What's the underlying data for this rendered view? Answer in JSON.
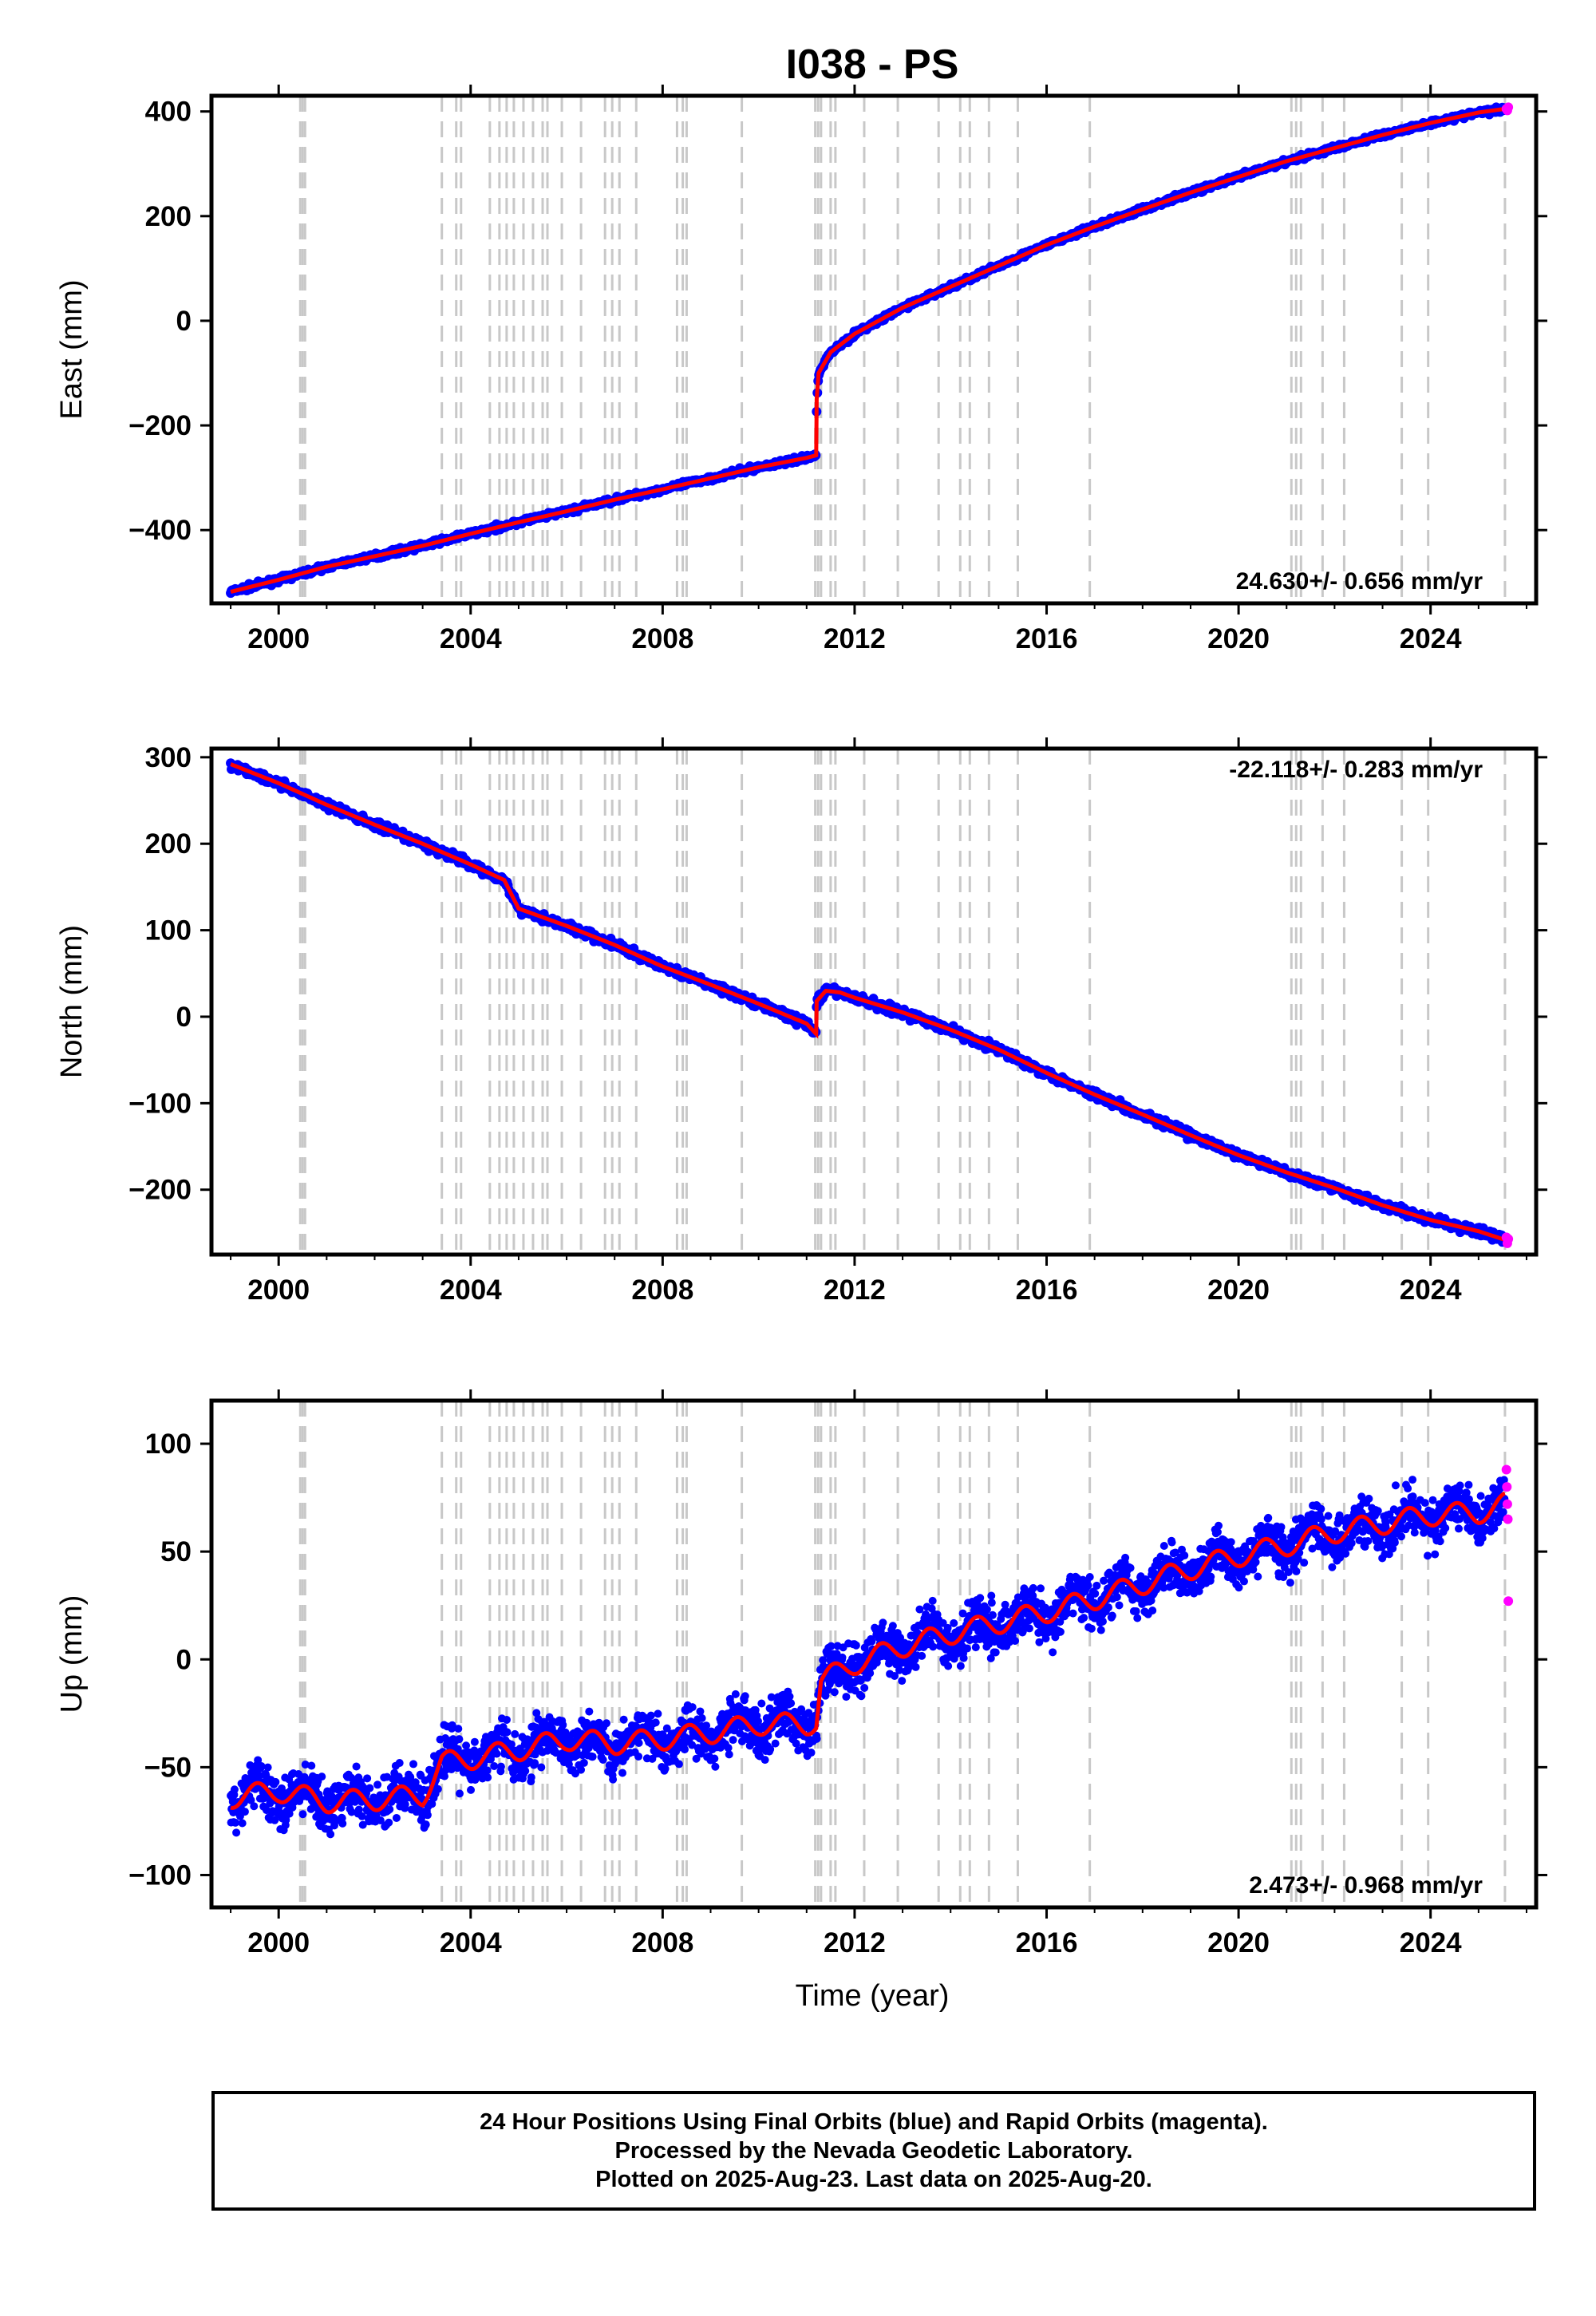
{
  "title": "I038 - PS",
  "xlabel": "Time (year)",
  "colors": {
    "final_orbit_points": "#0000ff",
    "rapid_orbit_points": "#ff00ff",
    "model_line": "#ff0000",
    "event_lines": "#c8c8c8",
    "frame": "#000000"
  },
  "chart_data": [
    {
      "type": "scatter",
      "component": "East",
      "ylabel": "East (mm)",
      "xlim": [
        1998.6,
        2026.2
      ],
      "ylim": [
        -540,
        430
      ],
      "x_ticks": [
        "2000",
        "2004",
        "2008",
        "2012",
        "2016",
        "2020",
        "2024"
      ],
      "y_ticks": [
        "400",
        "200",
        "0",
        "−200",
        "−400"
      ],
      "rate_label": "24.630+/- 0.656 mm/yr",
      "rate_label_position": "bottom-right",
      "series": [
        {
          "name": "Final Orbits",
          "color": "#0000ff",
          "x": [
            1999.0,
            2000.0,
            2001.0,
            2002.0,
            2003.0,
            2004.0,
            2005.0,
            2006.0,
            2007.0,
            2008.0,
            2009.0,
            2010.0,
            2011.0,
            2011.2,
            2011.21,
            2011.25,
            2011.5,
            2012.0,
            2013.0,
            2014.0,
            2015.0,
            2016.0,
            2017.0,
            2018.0,
            2019.0,
            2020.0,
            2021.0,
            2022.0,
            2023.0,
            2024.0,
            2025.0,
            2025.55
          ],
          "y": [
            -518,
            -495,
            -470,
            -450,
            -430,
            -407,
            -385,
            -364,
            -342,
            -322,
            -301,
            -280,
            -262,
            -257,
            -150,
            -100,
            -60,
            -25,
            25,
            65,
            105,
            145,
            180,
            213,
            245,
            275,
            305,
            330,
            355,
            378,
            398,
            405
          ]
        },
        {
          "name": "Rapid Orbits",
          "color": "#ff00ff",
          "x": [
            2025.58,
            2025.6,
            2025.62
          ],
          "y": [
            405,
            402,
            408
          ]
        }
      ]
    },
    {
      "type": "scatter",
      "component": "North",
      "ylabel": "North (mm)",
      "xlim": [
        1998.6,
        2026.2
      ],
      "ylim": [
        -275,
        310
      ],
      "x_ticks": [
        "2000",
        "2004",
        "2008",
        "2012",
        "2016",
        "2020",
        "2024"
      ],
      "y_ticks": [
        "300",
        "200",
        "100",
        "0",
        "−100",
        "−200"
      ],
      "rate_label": "-22.118+/- 0.283 mm/yr",
      "rate_label_position": "top-right",
      "series": [
        {
          "name": "Final Orbits",
          "color": "#0000ff",
          "x": [
            1999.0,
            2000.0,
            2001.0,
            2002.0,
            2003.0,
            2004.0,
            2004.7,
            2005.0,
            2006.0,
            2007.0,
            2008.0,
            2009.0,
            2010.0,
            2011.0,
            2011.2,
            2011.21,
            2011.4,
            2011.7,
            2012.0,
            2013.0,
            2014.0,
            2015.0,
            2016.0,
            2017.0,
            2018.0,
            2019.0,
            2020.0,
            2021.0,
            2022.0,
            2023.0,
            2024.0,
            2025.0,
            2025.55
          ],
          "y": [
            292,
            270,
            245,
            222,
            200,
            176,
            158,
            125,
            105,
            83,
            58,
            37,
            15,
            -8,
            -20,
            18,
            30,
            28,
            22,
            5,
            -15,
            -38,
            -65,
            -90,
            -113,
            -137,
            -160,
            -180,
            -198,
            -218,
            -235,
            -248,
            -258
          ]
        },
        {
          "name": "Rapid Orbits",
          "color": "#ff00ff",
          "x": [
            2025.58,
            2025.6,
            2025.62
          ],
          "y": [
            -255,
            -262,
            -257
          ]
        }
      ]
    },
    {
      "type": "scatter",
      "component": "Up",
      "ylabel": "Up (mm)",
      "xlim": [
        1998.6,
        2026.2
      ],
      "ylim": [
        -115,
        120
      ],
      "x_ticks": [
        "2000",
        "2004",
        "2008",
        "2012",
        "2016",
        "2020",
        "2024"
      ],
      "y_ticks": [
        "100",
        "50",
        "0",
        "−50",
        "−100"
      ],
      "rate_label": "2.473+/- 0.968 mm/yr",
      "rate_label_position": "bottom-right",
      "series": [
        {
          "name": "Final Orbits",
          "color": "#0000ff",
          "x": [
            1999.0,
            2000.0,
            2001.0,
            2002.0,
            2003.0,
            2003.4,
            2004.0,
            2005.0,
            2006.0,
            2007.0,
            2008.0,
            2009.0,
            2010.0,
            2011.0,
            2011.2,
            2011.3,
            2012.0,
            2013.0,
            2014.0,
            2015.0,
            2016.0,
            2017.0,
            2018.0,
            2019.0,
            2020.0,
            2021.0,
            2022.0,
            2023.0,
            2024.0,
            2025.0,
            2025.55
          ],
          "y": [
            -64,
            -61,
            -66,
            -65,
            -63,
            -48,
            -46,
            -42,
            -37,
            -39,
            -37,
            -34,
            -30,
            -30,
            -29,
            -10,
            -2,
            6,
            12,
            17,
            22,
            28,
            35,
            42,
            48,
            53,
            59,
            63,
            67,
            68,
            72
          ]
        },
        {
          "name": "Rapid Orbits",
          "color": "#ff00ff",
          "x": [
            2025.58,
            2025.59,
            2025.6,
            2025.61,
            2025.62
          ],
          "y": [
            88,
            80,
            72,
            65,
            27
          ]
        }
      ]
    }
  ],
  "event_lines": [
    2000.45,
    2000.5,
    2000.55,
    2003.4,
    2003.7,
    2003.8,
    2004.4,
    2004.6,
    2004.75,
    2004.9,
    2005.1,
    2005.3,
    2005.5,
    2005.6,
    2005.9,
    2006.3,
    2006.8,
    2006.95,
    2007.1,
    2007.45,
    2008.3,
    2008.42,
    2008.5,
    2009.65,
    2011.18,
    2011.24,
    2011.3,
    2011.5,
    2011.6,
    2012.2,
    2012.9,
    2013.75,
    2014.2,
    2014.4,
    2014.8,
    2015.4,
    2016.9,
    2021.1,
    2021.2,
    2021.3,
    2021.75,
    2022.2,
    2023.4,
    2023.95,
    2025.55
  ],
  "footer": {
    "line1": "24 Hour Positions Using Final Orbits (blue) and Rapid Orbits (magenta).",
    "line2": "Processed by the Nevada Geodetic Laboratory.",
    "line3": "Plotted on 2025-Aug-23. Last data on 2025-Aug-20."
  }
}
